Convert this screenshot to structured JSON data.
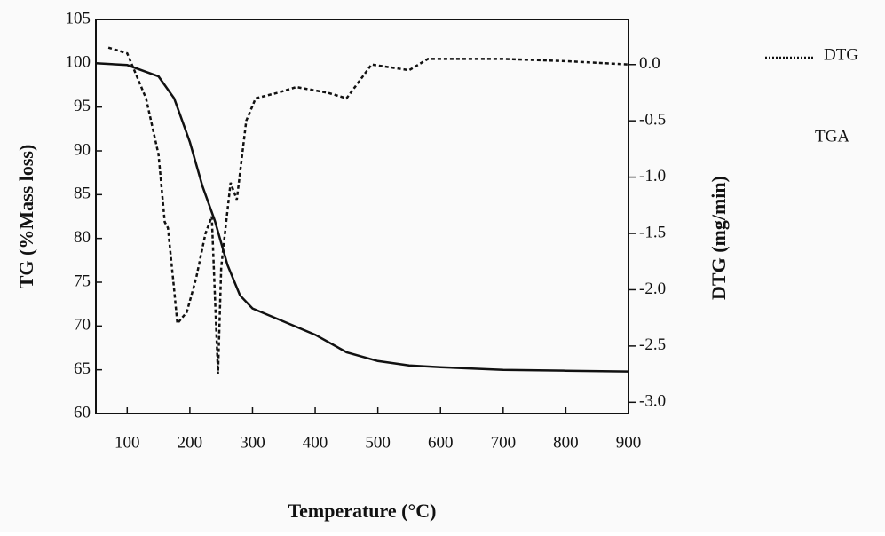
{
  "chart_data": {
    "type": "line",
    "xlabel": "Temperature (°C)",
    "ylabel": "TG (%Mass loss)",
    "y2label": "DTG (mg/min)",
    "xlim": [
      50,
      900
    ],
    "xticks": [
      100,
      200,
      300,
      400,
      500,
      600,
      700,
      800,
      900
    ],
    "ylim": [
      60,
      105
    ],
    "yticks": [
      60,
      65,
      70,
      75,
      80,
      85,
      90,
      95,
      100,
      105
    ],
    "y2lim": [
      -3.1,
      0.4
    ],
    "y2ticks": [
      {
        "value": -3,
        "label": "-3.0"
      },
      -2.5,
      {
        "value": -2,
        "label": "-2.0"
      },
      -1.5,
      {
        "value": -1,
        "label": "-1.0"
      },
      -0.5,
      {
        "value": 0,
        "label": "0.0"
      }
    ],
    "series": [
      {
        "name": "TGA",
        "color": "#111111",
        "dash": "solid",
        "x": [
          50,
          100,
          150,
          175,
          200,
          220,
          240,
          260,
          280,
          300,
          350,
          400,
          450,
          500,
          550,
          600,
          700,
          800,
          900
        ],
        "values": [
          100,
          99.8,
          98.5,
          96,
          91,
          86,
          82,
          77,
          73.5,
          72,
          70.5,
          69,
          67,
          66,
          65.5,
          65.3,
          65,
          64.9,
          64.8
        ]
      },
      {
        "name": "DTG",
        "color": "#111111",
        "dash": "dotted",
        "axis": "y2",
        "x": [
          70,
          100,
          130,
          150,
          160,
          165,
          175,
          180,
          195,
          210,
          225,
          235,
          245,
          250,
          260,
          265,
          275,
          290,
          305,
          340,
          370,
          420,
          450,
          470,
          490,
          550,
          580,
          700,
          800,
          900
        ],
        "values": [
          0.15,
          0.1,
          -0.3,
          -0.8,
          -1.4,
          -1.45,
          -2.0,
          -2.3,
          -2.2,
          -1.9,
          -1.5,
          -1.35,
          -2.75,
          -1.8,
          -1.3,
          -1.05,
          -1.2,
          -0.5,
          -0.3,
          -0.25,
          -0.2,
          -0.25,
          -0.3,
          -0.15,
          0.0,
          -0.05,
          0.05,
          0.05,
          0.03,
          0.0
        ]
      }
    ]
  }
}
